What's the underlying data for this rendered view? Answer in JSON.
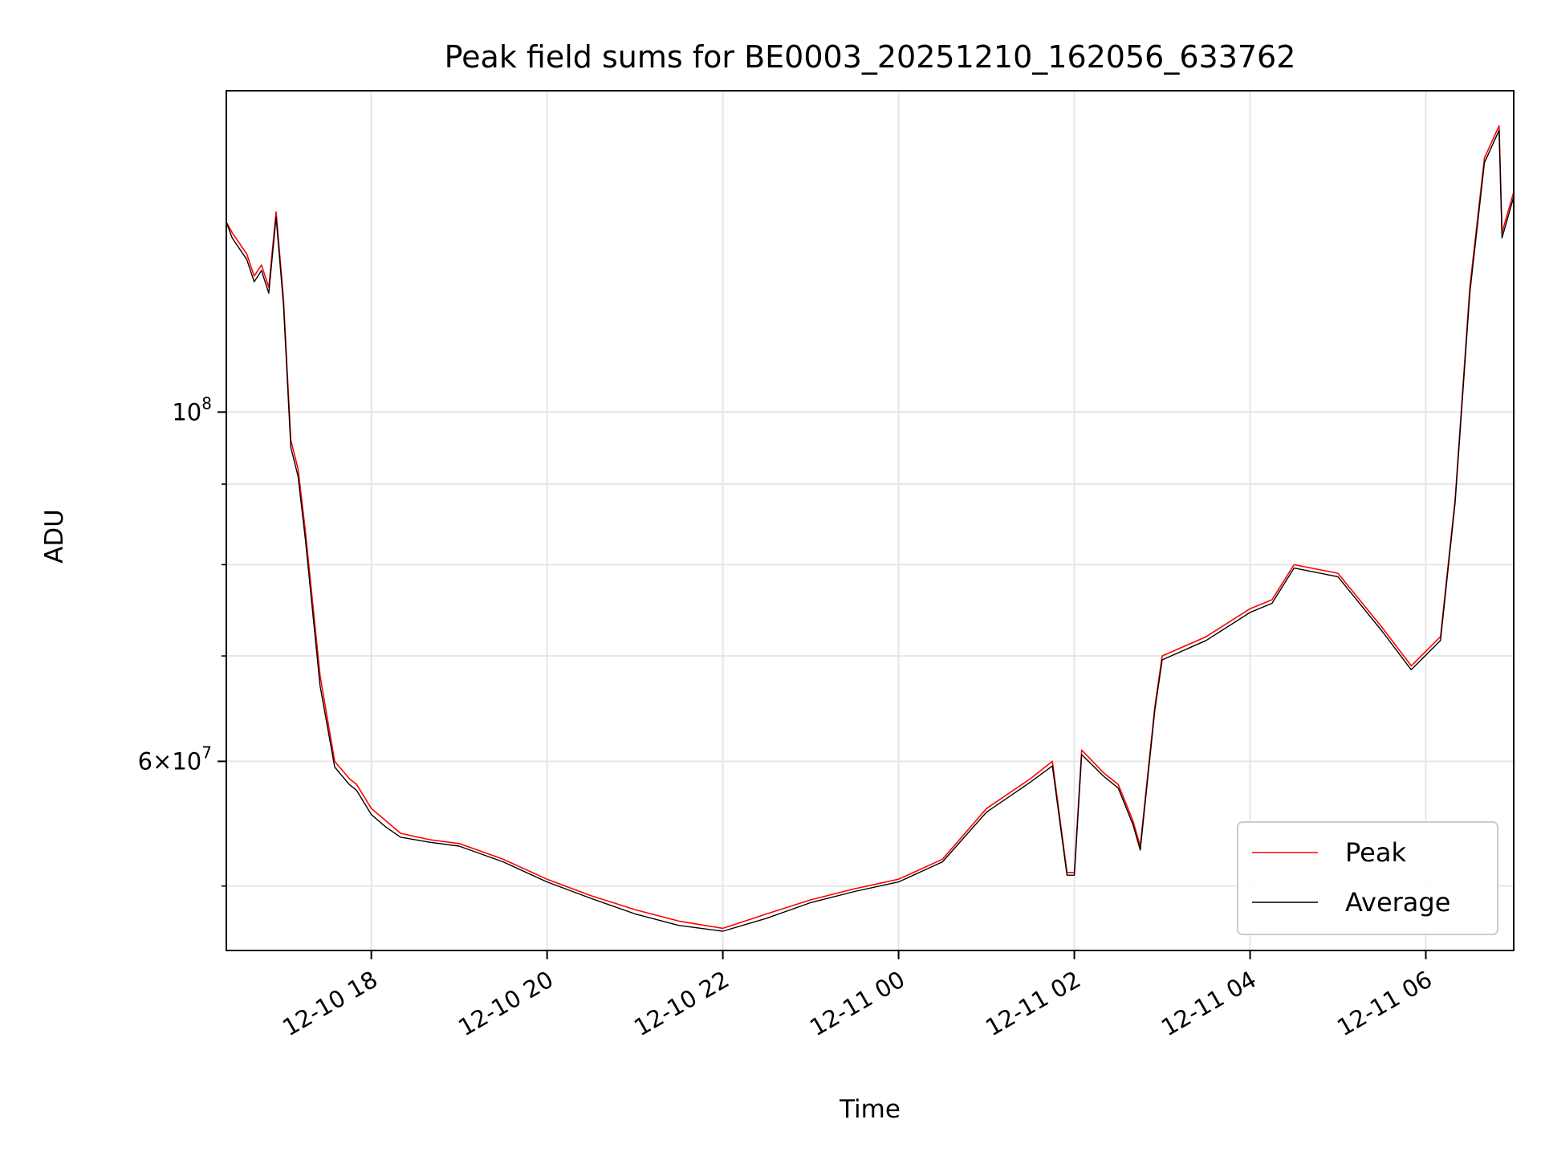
{
  "chart_data": {
    "type": "line",
    "title": "Peak field sums for BE0003_20251210_162056_633762",
    "xlabel": "Time",
    "ylabel": "ADU",
    "yscale": "log",
    "ylim": [
      45500000,
      160000000
    ],
    "xlim": [
      "2025-12-10 16:21",
      "2025-12-11 07:00"
    ],
    "grid": true,
    "legend": "lower-right",
    "x_ticks": [
      {
        "value": "2025-12-10 18:00",
        "label": "12-10 18"
      },
      {
        "value": "2025-12-10 20:00",
        "label": "12-10 20"
      },
      {
        "value": "2025-12-10 22:00",
        "label": "12-10 22"
      },
      {
        "value": "2025-12-11 00:00",
        "label": "12-11 00"
      },
      {
        "value": "2025-12-11 02:00",
        "label": "12-11 02"
      },
      {
        "value": "2025-12-11 04:00",
        "label": "12-11 04"
      },
      {
        "value": "2025-12-11 06:00",
        "label": "12-11 06"
      }
    ],
    "y_ticks_major": [
      {
        "value": 60000000,
        "base": "6×10",
        "exp": "7"
      },
      {
        "value": 100000000,
        "base": "10",
        "exp": "8"
      }
    ],
    "y_ticks_minor": [
      50000000,
      70000000,
      80000000,
      90000000
    ],
    "x": [
      "2025-12-10 16:21",
      "2025-12-10 16:25",
      "2025-12-10 16:35",
      "2025-12-10 16:40",
      "2025-12-10 16:45",
      "2025-12-10 16:50",
      "2025-12-10 16:55",
      "2025-12-10 17:00",
      "2025-12-10 17:05",
      "2025-12-10 17:10",
      "2025-12-10 17:15",
      "2025-12-10 17:25",
      "2025-12-10 17:35",
      "2025-12-10 17:45",
      "2025-12-10 17:50",
      "2025-12-10 17:55",
      "2025-12-10 18:00",
      "2025-12-10 18:10",
      "2025-12-10 18:20",
      "2025-12-10 18:40",
      "2025-12-10 19:00",
      "2025-12-10 19:30",
      "2025-12-10 20:00",
      "2025-12-10 20:30",
      "2025-12-10 21:00",
      "2025-12-10 21:30",
      "2025-12-10 22:00",
      "2025-12-10 22:30",
      "2025-12-10 23:00",
      "2025-12-10 23:30",
      "2025-12-11 00:00",
      "2025-12-11 00:30",
      "2025-12-11 01:00",
      "2025-12-11 01:30",
      "2025-12-11 01:45",
      "2025-12-11 01:55",
      "2025-12-11 02:00",
      "2025-12-11 02:05",
      "2025-12-11 02:20",
      "2025-12-11 02:30",
      "2025-12-11 02:40",
      "2025-12-11 02:45",
      "2025-12-11 02:55",
      "2025-12-11 03:00",
      "2025-12-11 03:30",
      "2025-12-11 04:00",
      "2025-12-11 04:15",
      "2025-12-11 04:30",
      "2025-12-11 05:00",
      "2025-12-11 05:30",
      "2025-12-11 05:50",
      "2025-12-11 06:10",
      "2025-12-11 06:20",
      "2025-12-11 06:30",
      "2025-12-11 06:40",
      "2025-12-11 06:50",
      "2025-12-11 06:52",
      "2025-12-11 07:00"
    ],
    "series": [
      {
        "name": "Peak",
        "color": "#ff0000",
        "values": [
          132000000,
          130000000,
          126000000,
          122000000,
          124000000,
          120000000,
          134000000,
          118000000,
          96000000,
          92000000,
          84000000,
          68000000,
          60000000,
          58500000,
          58000000,
          57000000,
          56000000,
          55000000,
          54000000,
          53500000,
          53200000,
          52000000,
          50500000,
          49300000,
          48300000,
          47500000,
          47000000,
          48000000,
          49000000,
          49800000,
          50500000,
          52000000,
          56000000,
          58500000,
          60000000,
          51000000,
          51000000,
          61000000,
          59000000,
          58000000,
          55000000,
          53000000,
          65000000,
          70000000,
          72000000,
          75000000,
          76000000,
          80000000,
          79000000,
          73000000,
          69000000,
          72000000,
          88000000,
          120000000,
          145000000,
          152000000,
          130000000,
          138000000
        ]
      },
      {
        "name": "Average",
        "color": "#000000",
        "values": [
          132000000,
          129000000,
          125000000,
          121000000,
          123000000,
          119000000,
          133000000,
          117000000,
          95000000,
          91000000,
          83000000,
          67000000,
          59500000,
          58000000,
          57500000,
          56500000,
          55500000,
          54500000,
          53700000,
          53300000,
          53000000,
          51800000,
          50300000,
          49100000,
          48000000,
          47200000,
          46800000,
          47700000,
          48800000,
          49600000,
          50300000,
          51800000,
          55700000,
          58200000,
          59600000,
          50800000,
          50800000,
          60600000,
          58700000,
          57700000,
          54700000,
          52700000,
          64700000,
          69600000,
          71600000,
          74600000,
          75600000,
          79600000,
          78600000,
          72600000,
          68600000,
          71600000,
          87600000,
          119000000,
          144000000,
          151000000,
          129000000,
          137000000
        ]
      }
    ]
  }
}
